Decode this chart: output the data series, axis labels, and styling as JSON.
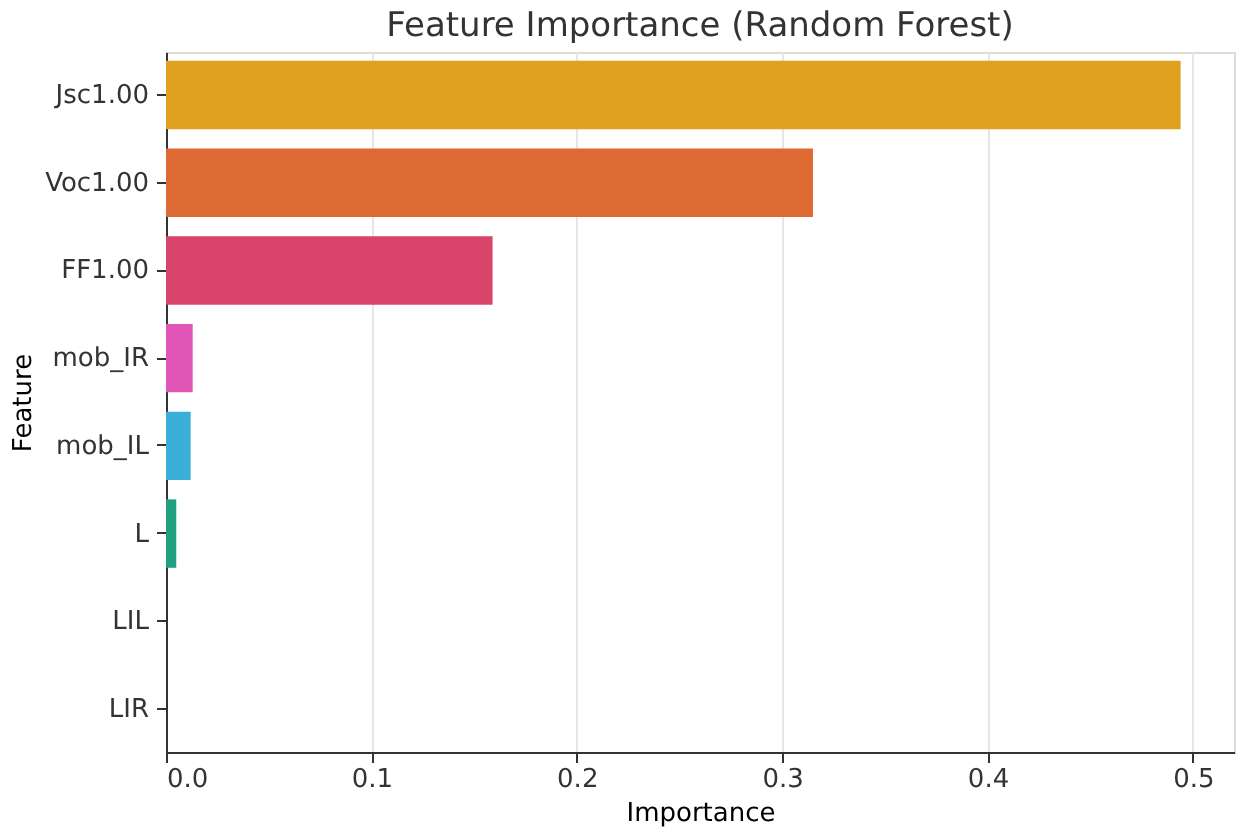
{
  "chart_data": {
    "type": "bar",
    "orientation": "horizontal",
    "title": "Feature Importance (Random Forest)",
    "xlabel": "Importance",
    "ylabel": "Feature",
    "categories": [
      "Jsc1.00",
      "Voc1.00",
      "FF1.00",
      "mob_IR",
      "mob_IL",
      "L",
      "LIL",
      "LIR"
    ],
    "values": [
      0.494,
      0.315,
      0.159,
      0.013,
      0.012,
      0.005,
      0,
      0
    ],
    "colors": [
      "#e0a020",
      "#dd6a33",
      "#d9456a",
      "#e055b5",
      "#3ab0d8",
      "#20a080",
      "#5a9e3a",
      "#8a70d0"
    ],
    "xlim": [
      0,
      0.52
    ],
    "xticks": [
      {
        "value": 0,
        "label": "0.0"
      },
      0.1,
      0.2,
      0.3,
      0.4,
      0.5
    ],
    "grid": "x"
  }
}
